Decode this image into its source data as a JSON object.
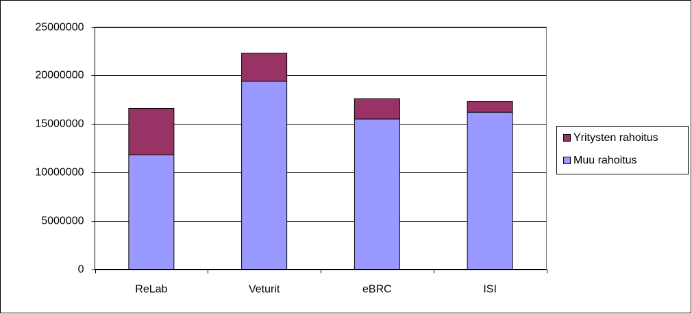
{
  "chart_data": {
    "type": "stacked_bar",
    "categories": [
      "ReLab",
      "Veturit",
      "eBRC",
      "ISI"
    ],
    "series": [
      {
        "name": "Muu rahoitus",
        "color": "#9999ff",
        "values": [
          11800000,
          19400000,
          15500000,
          16200000
        ]
      },
      {
        "name": "Yritysten rahoitus",
        "color": "#993366",
        "values": [
          4800000,
          2900000,
          2100000,
          1100000
        ]
      }
    ],
    "ylim": [
      0,
      25000000
    ],
    "yticks": [
      0,
      5000000,
      10000000,
      15000000,
      20000000,
      25000000
    ],
    "grid": true,
    "legend": "right"
  }
}
